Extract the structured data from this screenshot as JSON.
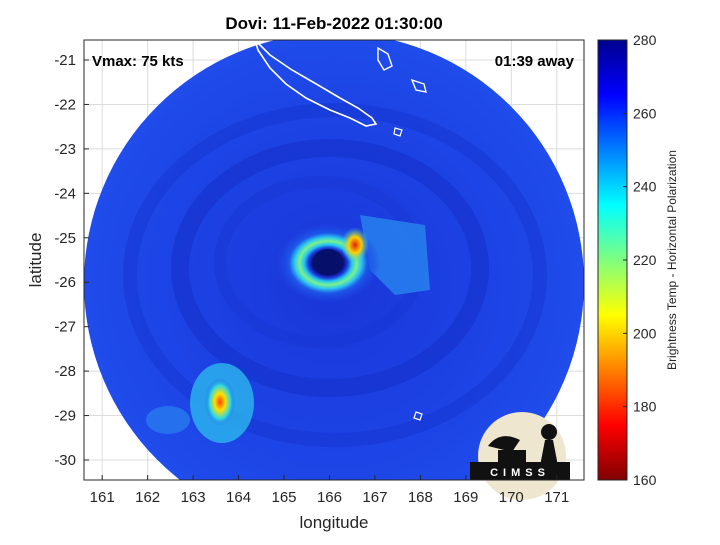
{
  "title": "Dovi: 11-Feb-2022 01:30:00",
  "vmax_label": "Vmax: 75 kts",
  "time_away": "01:39 away",
  "logo_text": "CIMSS",
  "colors": {
    "background": "#1c3ee0",
    "eye": "#06106a",
    "land_outline": "#ffffff"
  },
  "chart_data": {
    "type": "heatmap",
    "title": "Dovi: 11-Feb-2022 01:30:00",
    "xlabel": "longitude",
    "ylabel": "latitude",
    "xlim": [
      160.6,
      171.6
    ],
    "ylim": [
      -30.45,
      -20.55
    ],
    "x_ticks": [
      161,
      162,
      163,
      164,
      165,
      166,
      167,
      168,
      169,
      170,
      171
    ],
    "y_ticks": [
      -21,
      -22,
      -23,
      -24,
      -25,
      -26,
      -27,
      -28,
      -29,
      -30
    ],
    "grid": true,
    "colorbar": {
      "label": "Brightness Temp - Horizontal Polarization",
      "range": [
        160,
        280
      ],
      "ticks": [
        160,
        180,
        200,
        220,
        240,
        260,
        280
      ],
      "colormap": "jet"
    },
    "swath": {
      "center_lon": 166.0,
      "center_lat": -25.6,
      "radius_deg": 5.9
    },
    "eye_center": {
      "lon": 166.0,
      "lat": -25.4
    }
  }
}
